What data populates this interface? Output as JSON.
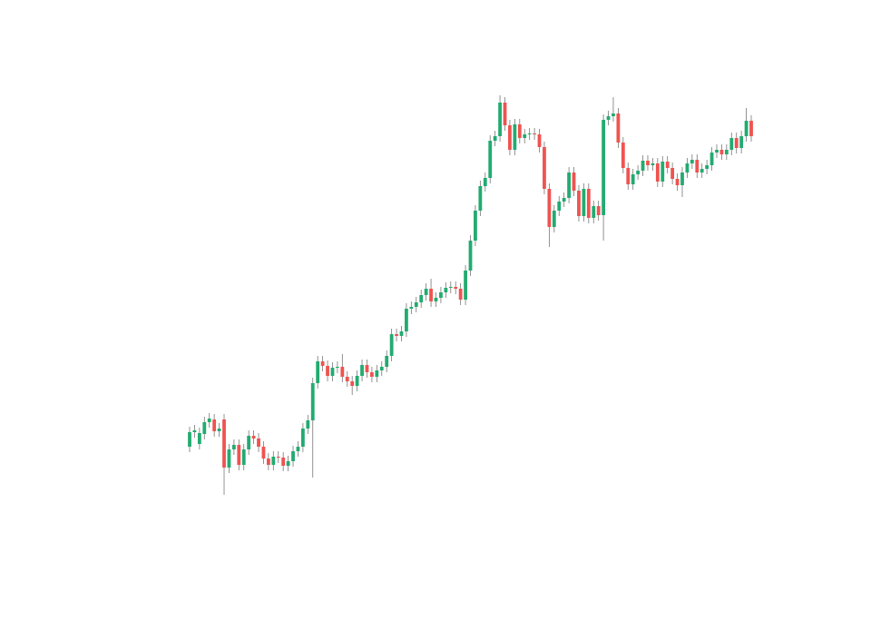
{
  "chart_data": {
    "type": "candlestick",
    "up_color": "#22ab70",
    "down_color": "#ef5350",
    "wick_color": "#777777",
    "open": [
      108,
      124,
      111,
      122,
      135,
      138,
      125,
      138,
      85,
      105,
      110,
      88,
      105,
      120,
      117,
      108,
      95,
      88,
      97,
      96,
      87,
      92,
      103,
      108,
      128,
      137,
      178,
      202,
      197,
      186,
      195,
      196,
      185,
      180,
      175,
      186,
      198,
      190,
      185,
      192,
      196,
      208,
      232,
      230,
      235,
      260,
      262,
      267,
      275,
      282,
      268,
      272,
      278,
      283,
      284,
      282,
      270,
      302,
      335,
      368,
      395,
      404,
      445,
      450,
      487,
      462,
      435,
      463,
      448,
      452,
      453,
      452,
      438,
      392,
      350,
      368,
      378,
      382,
      410,
      390,
      362,
      392,
      360,
      373,
      363,
      468,
      472,
      475,
      443,
      415,
      397,
      408,
      412,
      423,
      418,
      420,
      400,
      422,
      415,
      403,
      396,
      410,
      420,
      424,
      410,
      414,
      418,
      432,
      435,
      430,
      435,
      448,
      437,
      450,
      467
    ],
    "high": [
      130,
      132,
      129,
      141,
      145,
      144,
      134,
      144,
      111,
      116,
      116,
      111,
      126,
      126,
      123,
      114,
      101,
      103,
      103,
      102,
      98,
      109,
      114,
      134,
      143,
      184,
      208,
      208,
      203,
      201,
      202,
      210,
      191,
      186,
      192,
      204,
      204,
      196,
      198,
      202,
      214,
      238,
      238,
      241,
      266,
      268,
      273,
      281,
      288,
      293,
      278,
      284,
      289,
      290,
      290,
      288,
      308,
      341,
      374,
      401,
      410,
      451,
      456,
      495,
      493,
      468,
      469,
      469,
      458,
      459,
      459,
      458,
      444,
      398,
      374,
      384,
      388,
      416,
      416,
      396,
      398,
      398,
      379,
      379,
      474,
      478,
      493,
      481,
      449,
      421,
      414,
      418,
      429,
      429,
      426,
      426,
      428,
      428,
      421,
      409,
      416,
      426,
      430,
      430,
      420,
      424,
      438,
      441,
      441,
      441,
      454,
      454,
      456,
      481,
      473
    ],
    "low": [
      102,
      118,
      105,
      116,
      129,
      119,
      119,
      55,
      79,
      99,
      82,
      82,
      99,
      111,
      102,
      89,
      82,
      82,
      90,
      81,
      81,
      86,
      97,
      102,
      122,
      74,
      172,
      191,
      180,
      180,
      189,
      179,
      174,
      165,
      169,
      180,
      184,
      179,
      179,
      186,
      190,
      202,
      224,
      224,
      229,
      254,
      256,
      261,
      269,
      262,
      262,
      266,
      272,
      277,
      276,
      264,
      264,
      296,
      329,
      362,
      389,
      398,
      439,
      444,
      456,
      429,
      429,
      442,
      442,
      446,
      446,
      432,
      386,
      328,
      344,
      362,
      372,
      376,
      384,
      356,
      356,
      354,
      354,
      357,
      335,
      462,
      466,
      437,
      409,
      391,
      391,
      402,
      406,
      412,
      412,
      394,
      394,
      409,
      397,
      390,
      383,
      404,
      414,
      404,
      404,
      408,
      412,
      426,
      424,
      424,
      429,
      431,
      431,
      444,
      444
    ],
    "close": [
      124,
      126,
      123,
      135,
      139,
      125,
      128,
      85,
      105,
      110,
      88,
      105,
      120,
      117,
      108,
      95,
      88,
      97,
      96,
      87,
      92,
      103,
      108,
      128,
      137,
      178,
      202,
      197,
      186,
      195,
      196,
      185,
      180,
      175,
      186,
      198,
      190,
      185,
      192,
      196,
      208,
      232,
      230,
      235,
      260,
      262,
      267,
      275,
      282,
      268,
      272,
      278,
      283,
      284,
      282,
      270,
      302,
      335,
      368,
      395,
      404,
      445,
      450,
      487,
      462,
      435,
      463,
      448,
      452,
      453,
      452,
      438,
      392,
      350,
      368,
      378,
      382,
      410,
      390,
      362,
      392,
      360,
      373,
      363,
      468,
      472,
      475,
      443,
      415,
      397,
      408,
      412,
      423,
      418,
      420,
      400,
      422,
      415,
      403,
      396,
      410,
      420,
      424,
      410,
      414,
      418,
      432,
      435,
      430,
      435,
      448,
      437,
      450,
      467,
      450
    ]
  }
}
